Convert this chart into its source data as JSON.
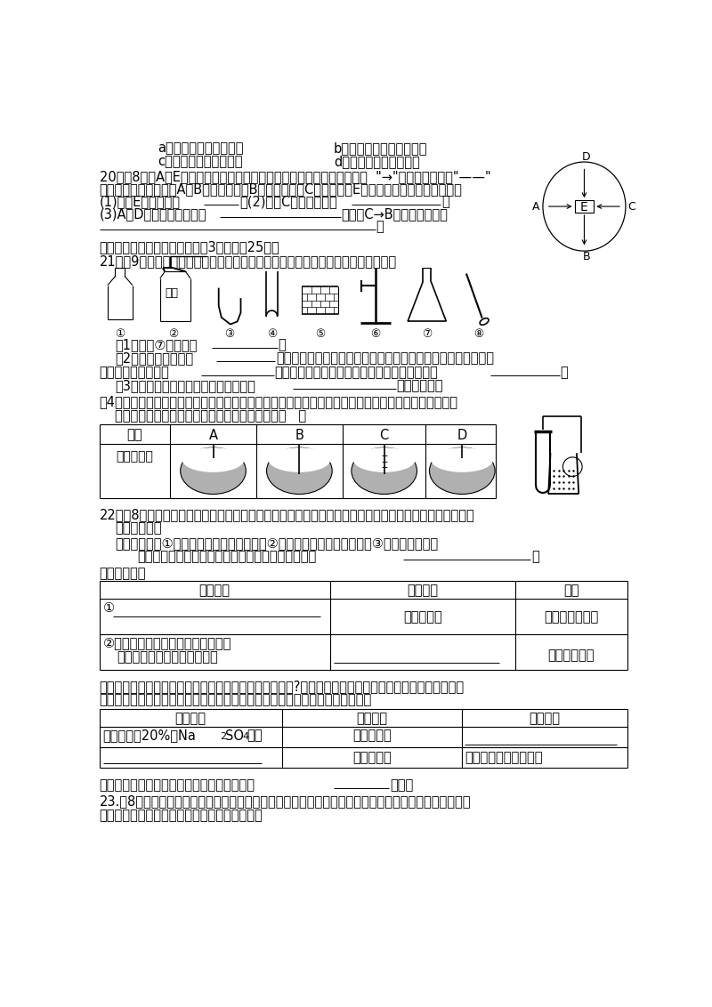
{
  "bg_color": "#ffffff",
  "text_color": "#000000",
  "page_content": "chemistry_exam_page3"
}
